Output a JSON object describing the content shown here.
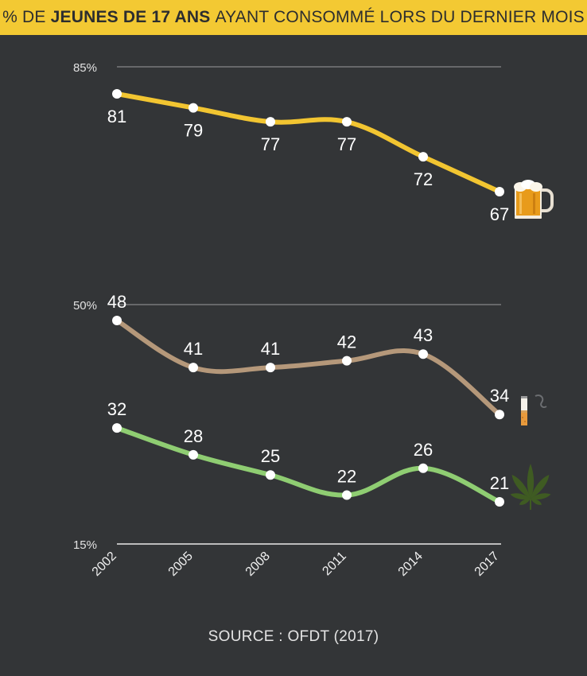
{
  "header": {
    "title_pre": "% DE ",
    "title_bold": "JEUNES DE 17 ANS",
    "title_post": " AYANT CONSOMMÉ LORS DU DERNIER MOIS"
  },
  "source": "SOURCE : OFDT (2017)",
  "colors": {
    "background": "#333537",
    "header": "#f3c933",
    "alcohol": "#f2c531",
    "tobacco": "#b5987a",
    "cannabis": "#8fcd72",
    "gridline": "#d8d8d8",
    "point": "#ffffff"
  },
  "chart_data": {
    "type": "line",
    "x": [
      "2002",
      "2005",
      "2008",
      "2011",
      "2014",
      "2017"
    ],
    "y_ticks": [
      "85%",
      "50%",
      "15%"
    ],
    "series": [
      {
        "key": "alcohol",
        "icon": "beer-icon",
        "color": "#f2c531",
        "values": [
          81,
          79,
          77,
          77,
          72,
          67
        ],
        "labels": [
          "81",
          "79",
          "77",
          "77",
          "72",
          "67"
        ]
      },
      {
        "key": "tobacco",
        "icon": "cigarette-icon",
        "color": "#b5987a",
        "values": [
          48,
          41,
          41,
          42,
          43,
          34
        ],
        "labels": [
          "48",
          "41",
          "41",
          "42",
          "43",
          "34"
        ]
      },
      {
        "key": "cannabis",
        "icon": "cannabis-leaf-icon",
        "color": "#8fcd72",
        "values": [
          32,
          28,
          25,
          22,
          26,
          21
        ],
        "labels": [
          "32",
          "28",
          "25",
          "22",
          "26",
          "21"
        ]
      }
    ]
  }
}
